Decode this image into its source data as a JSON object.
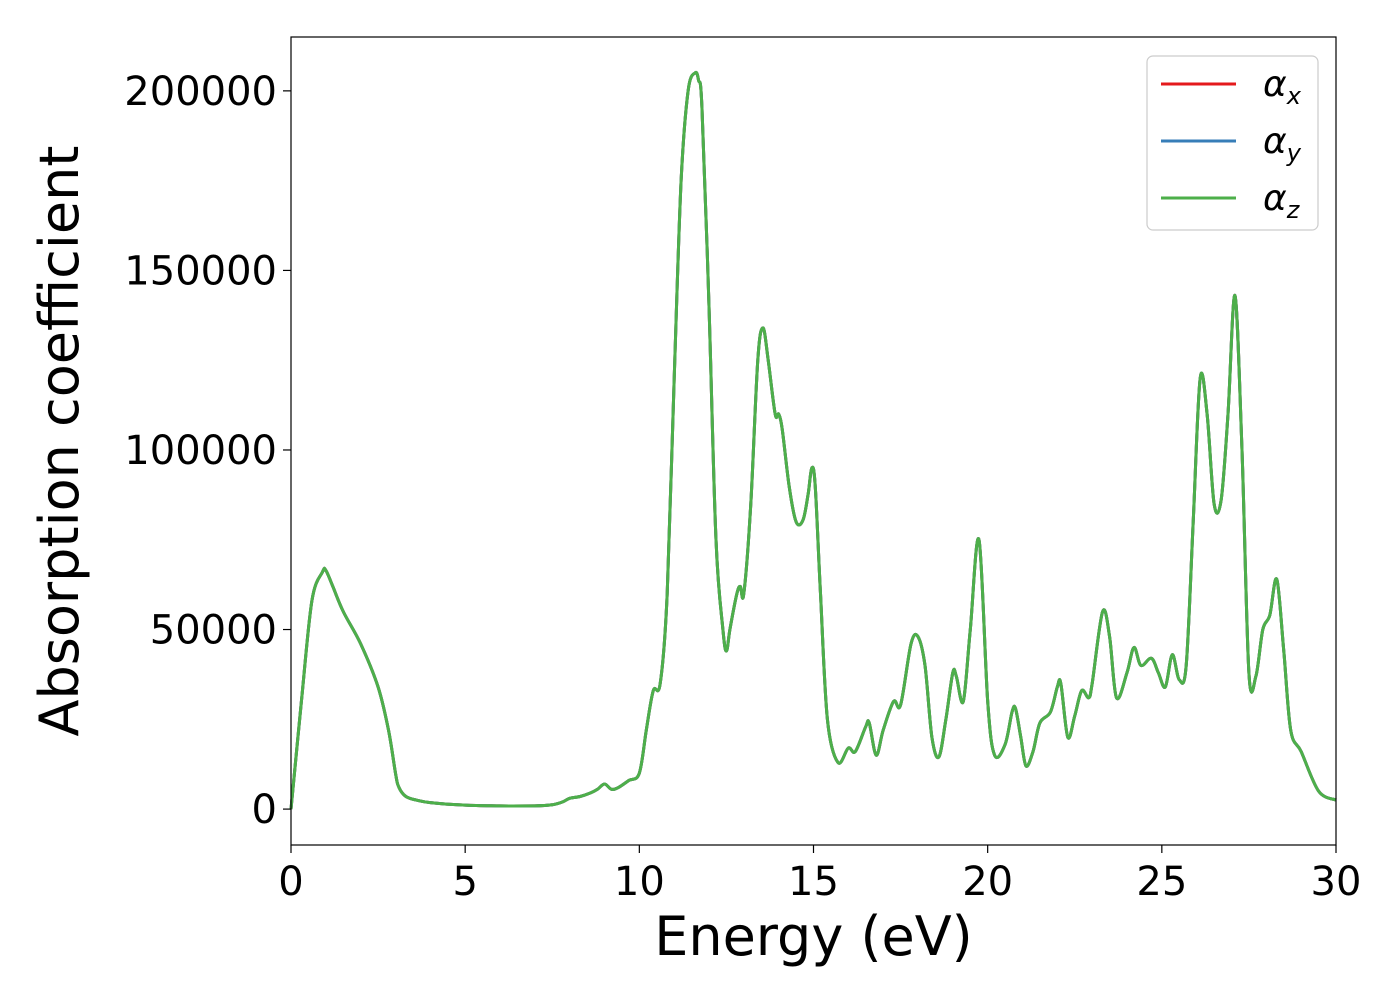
{
  "chart_data": {
    "type": "line",
    "xlabel": "Energy (eV)",
    "ylabel": "Absorption coefficient",
    "xlim": [
      0,
      30
    ],
    "ylim": [
      -10000,
      215000
    ],
    "xticks": [
      0,
      5,
      10,
      15,
      20,
      25,
      30
    ],
    "xtick_labels": [
      "0",
      "5",
      "10",
      "15",
      "20",
      "25",
      "30"
    ],
    "yticks": [
      0,
      50000,
      100000,
      150000,
      200000
    ],
    "ytick_labels": [
      "0",
      "50000",
      "100000",
      "150000",
      "200000"
    ],
    "grid": false,
    "legend_position": "top-right",
    "x": [
      0,
      0.3,
      0.6,
      0.9,
      1.0,
      1.2,
      1.5,
      2.0,
      2.5,
      2.8,
      3.0,
      3.1,
      3.3,
      3.6,
      4.0,
      5.0,
      6.0,
      7.0,
      7.5,
      7.8,
      8.0,
      8.3,
      8.6,
      8.8,
      9.0,
      9.2,
      9.4,
      9.7,
      10.0,
      10.2,
      10.4,
      10.6,
      10.8,
      11.0,
      11.2,
      11.4,
      11.6,
      11.7,
      11.8,
      12.0,
      12.2,
      12.4,
      12.5,
      12.6,
      12.8,
      12.9,
      13.0,
      13.2,
      13.4,
      13.55,
      13.7,
      13.9,
      14.0,
      14.1,
      14.3,
      14.5,
      14.7,
      14.85,
      14.95,
      15.05,
      15.2,
      15.4,
      15.7,
      16.0,
      16.2,
      16.5,
      16.6,
      16.8,
      17.0,
      17.3,
      17.5,
      17.8,
      18.0,
      18.2,
      18.4,
      18.6,
      18.8,
      19.0,
      19.1,
      19.3,
      19.5,
      19.75,
      20.0,
      20.2,
      20.5,
      20.7,
      20.8,
      20.95,
      21.1,
      21.3,
      21.5,
      21.8,
      22.0,
      22.1,
      22.3,
      22.5,
      22.7,
      22.9,
      23.0,
      23.3,
      23.5,
      23.7,
      24.0,
      24.2,
      24.4,
      24.7,
      24.9,
      25.1,
      25.3,
      25.5,
      25.7,
      25.9,
      26.1,
      26.3,
      26.5,
      26.7,
      26.9,
      27.1,
      27.3,
      27.5,
      27.7,
      27.9,
      28.1,
      28.3,
      28.5,
      28.7,
      29.0,
      29.5,
      30.0
    ],
    "series": [
      {
        "name": "αx",
        "color": "#e41a1c",
        "y": [
          0,
          30000,
          58000,
          66000,
          66500,
          62000,
          55000,
          46000,
          34000,
          22000,
          10000,
          6000,
          3500,
          2500,
          1800,
          1100,
          900,
          900,
          1200,
          2000,
          3000,
          3500,
          4500,
          5500,
          7000,
          5500,
          6000,
          8000,
          10000,
          22000,
          33000,
          35000,
          60000,
          120000,
          175000,
          200000,
          205000,
          203000,
          195000,
          140000,
          75000,
          50000,
          44000,
          50000,
          60000,
          62000,
          60000,
          85000,
          125000,
          134000,
          125000,
          110000,
          110000,
          106000,
          90000,
          80000,
          80500,
          88000,
          95000,
          90000,
          60000,
          25000,
          13000,
          17000,
          16000,
          23000,
          24000,
          15000,
          22000,
          30000,
          29000,
          46000,
          48000,
          40000,
          20000,
          14500,
          25000,
          38000,
          37000,
          30000,
          50000,
          75000,
          30000,
          15000,
          18000,
          27000,
          28000,
          20000,
          12000,
          16000,
          24000,
          27000,
          34000,
          35000,
          20000,
          26000,
          33000,
          31000,
          35000,
          55000,
          48000,
          31000,
          38000,
          45000,
          40000,
          42000,
          38000,
          34000,
          43000,
          36000,
          40000,
          80000,
          120000,
          110000,
          85000,
          86000,
          110000,
          143000,
          100000,
          38000,
          37000,
          50000,
          54000,
          64000,
          44000,
          22000,
          16000,
          5000,
          2500
        ]
      },
      {
        "name": "αy",
        "color": "#377eb8",
        "y": [
          0,
          30000,
          58000,
          66000,
          66500,
          62000,
          55000,
          46000,
          34000,
          22000,
          10000,
          6000,
          3500,
          2500,
          1800,
          1100,
          900,
          900,
          1200,
          2000,
          3000,
          3500,
          4500,
          5500,
          7000,
          5500,
          6000,
          8000,
          10000,
          22000,
          33000,
          35000,
          60000,
          120000,
          175000,
          200000,
          205000,
          203000,
          195000,
          140000,
          75000,
          50000,
          44000,
          50000,
          60000,
          62000,
          60000,
          85000,
          125000,
          134000,
          125000,
          110000,
          110000,
          106000,
          90000,
          80000,
          80500,
          88000,
          95000,
          90000,
          60000,
          25000,
          13000,
          17000,
          16000,
          23000,
          24000,
          15000,
          22000,
          30000,
          29000,
          46000,
          48000,
          40000,
          20000,
          14500,
          25000,
          38000,
          37000,
          30000,
          50000,
          75000,
          30000,
          15000,
          18000,
          27000,
          28000,
          20000,
          12000,
          16000,
          24000,
          27000,
          34000,
          35000,
          20000,
          26000,
          33000,
          31000,
          35000,
          55000,
          48000,
          31000,
          38000,
          45000,
          40000,
          42000,
          38000,
          34000,
          43000,
          36000,
          40000,
          80000,
          120000,
          110000,
          85000,
          86000,
          110000,
          143000,
          100000,
          38000,
          37000,
          50000,
          54000,
          64000,
          44000,
          22000,
          16000,
          5000,
          2500
        ]
      },
      {
        "name": "αz",
        "color": "#4daf4a",
        "y": [
          0,
          30000,
          58000,
          66000,
          66500,
          62000,
          55000,
          46000,
          34000,
          22000,
          10000,
          6000,
          3500,
          2500,
          1800,
          1100,
          900,
          900,
          1200,
          2000,
          3000,
          3500,
          4500,
          5500,
          7000,
          5500,
          6000,
          8000,
          10000,
          22000,
          33000,
          35000,
          60000,
          120000,
          175000,
          200000,
          205000,
          203000,
          195000,
          140000,
          75000,
          50000,
          44000,
          50000,
          60000,
          62000,
          60000,
          85000,
          125000,
          134000,
          125000,
          110000,
          110000,
          106000,
          90000,
          80000,
          80500,
          88000,
          95000,
          90000,
          60000,
          25000,
          13000,
          17000,
          16000,
          23000,
          24000,
          15000,
          22000,
          30000,
          29000,
          46000,
          48000,
          40000,
          20000,
          14500,
          25000,
          38000,
          37000,
          30000,
          50000,
          75000,
          30000,
          15000,
          18000,
          27000,
          28000,
          20000,
          12000,
          16000,
          24000,
          27000,
          34000,
          35000,
          20000,
          26000,
          33000,
          31000,
          35000,
          55000,
          48000,
          31000,
          38000,
          45000,
          40000,
          42000,
          38000,
          34000,
          43000,
          36000,
          40000,
          80000,
          120000,
          110000,
          85000,
          86000,
          110000,
          143000,
          100000,
          38000,
          37000,
          50000,
          54000,
          64000,
          44000,
          22000,
          16000,
          5000,
          2500
        ]
      }
    ],
    "legend": [
      {
        "symbol": "α",
        "subscript": "x",
        "color": "#e41a1c"
      },
      {
        "symbol": "α",
        "subscript": "y",
        "color": "#377eb8"
      },
      {
        "symbol": "α",
        "subscript": "z",
        "color": "#4daf4a"
      }
    ]
  }
}
